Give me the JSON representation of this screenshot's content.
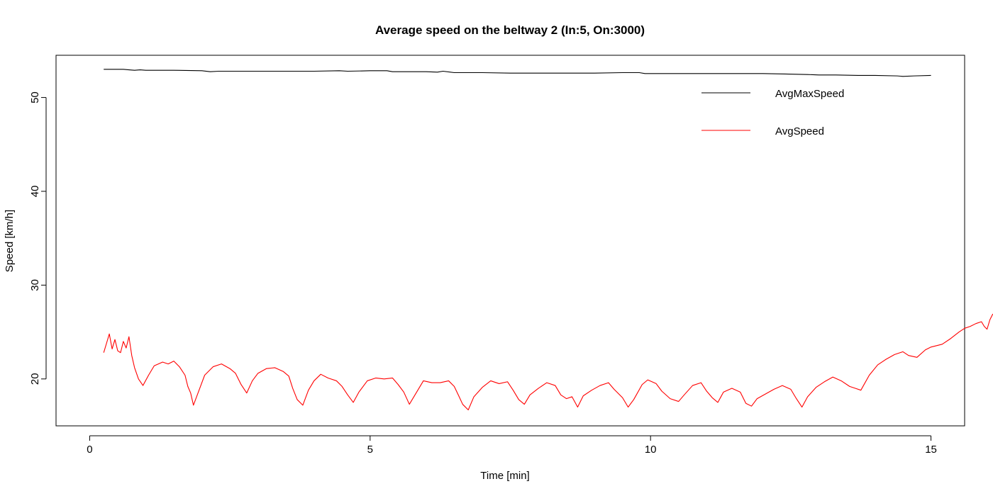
{
  "chart_data": {
    "type": "line",
    "title": "Average speed on the beltway 2 (In:5, On:3000)",
    "xlabel": "Time [min]",
    "ylabel": "Speed [km/h]",
    "xlim": [
      -0.6,
      15.6
    ],
    "ylim": [
      15.0,
      54.5
    ],
    "xticks": [
      0,
      5,
      10,
      15
    ],
    "yticks": [
      20,
      30,
      40,
      50
    ],
    "grid": false,
    "legend_position": "top-right",
    "series": [
      {
        "name": "AvgMaxSpeed",
        "color": "#000000",
        "points": [
          [
            0.25,
            53.0
          ],
          [
            0.6,
            53.0
          ],
          [
            0.7,
            52.95
          ],
          [
            0.8,
            52.9
          ],
          [
            0.9,
            52.95
          ],
          [
            1.0,
            52.9
          ],
          [
            1.5,
            52.9
          ],
          [
            2.0,
            52.85
          ],
          [
            2.15,
            52.75
          ],
          [
            2.3,
            52.8
          ],
          [
            3.0,
            52.8
          ],
          [
            4.0,
            52.8
          ],
          [
            4.45,
            52.85
          ],
          [
            4.6,
            52.8
          ],
          [
            5.0,
            52.85
          ],
          [
            5.3,
            52.85
          ],
          [
            5.4,
            52.75
          ],
          [
            6.0,
            52.75
          ],
          [
            6.2,
            52.7
          ],
          [
            6.3,
            52.8
          ],
          [
            6.5,
            52.65
          ],
          [
            7.0,
            52.65
          ],
          [
            7.5,
            52.6
          ],
          [
            8.0,
            52.6
          ],
          [
            8.5,
            52.6
          ],
          [
            9.0,
            52.6
          ],
          [
            9.5,
            52.65
          ],
          [
            9.8,
            52.65
          ],
          [
            9.9,
            52.55
          ],
          [
            10.5,
            52.55
          ],
          [
            11.0,
            52.55
          ],
          [
            11.5,
            52.55
          ],
          [
            12.0,
            52.55
          ],
          [
            12.4,
            52.5
          ],
          [
            12.8,
            52.45
          ],
          [
            13.0,
            52.4
          ],
          [
            13.3,
            52.4
          ],
          [
            13.7,
            52.35
          ],
          [
            14.0,
            52.35
          ],
          [
            14.4,
            52.3
          ],
          [
            14.5,
            52.25
          ],
          [
            14.7,
            52.3
          ],
          [
            15.0,
            52.35
          ]
        ]
      },
      {
        "name": "AvgSpeed",
        "color": "#ff0000",
        "points": [
          [
            0.25,
            22.8
          ],
          [
            0.3,
            23.8
          ],
          [
            0.35,
            24.8
          ],
          [
            0.4,
            23.2
          ],
          [
            0.45,
            24.2
          ],
          [
            0.5,
            23.0
          ],
          [
            0.55,
            22.8
          ],
          [
            0.6,
            24.0
          ],
          [
            0.65,
            23.3
          ],
          [
            0.7,
            24.5
          ],
          [
            0.75,
            22.5
          ],
          [
            0.8,
            21.2
          ],
          [
            0.87,
            20.0
          ],
          [
            0.95,
            19.3
          ],
          [
            1.05,
            20.4
          ],
          [
            1.15,
            21.4
          ],
          [
            1.3,
            21.8
          ],
          [
            1.4,
            21.6
          ],
          [
            1.5,
            21.9
          ],
          [
            1.6,
            21.3
          ],
          [
            1.7,
            20.4
          ],
          [
            1.75,
            19.2
          ],
          [
            1.8,
            18.5
          ],
          [
            1.85,
            17.2
          ],
          [
            1.95,
            18.8
          ],
          [
            2.05,
            20.4
          ],
          [
            2.2,
            21.3
          ],
          [
            2.35,
            21.6
          ],
          [
            2.5,
            21.1
          ],
          [
            2.6,
            20.6
          ],
          [
            2.7,
            19.4
          ],
          [
            2.8,
            18.5
          ],
          [
            2.9,
            19.8
          ],
          [
            3.0,
            20.6
          ],
          [
            3.15,
            21.1
          ],
          [
            3.3,
            21.2
          ],
          [
            3.45,
            20.8
          ],
          [
            3.55,
            20.3
          ],
          [
            3.62,
            19.0
          ],
          [
            3.7,
            17.8
          ],
          [
            3.8,
            17.2
          ],
          [
            3.9,
            18.8
          ],
          [
            4.0,
            19.8
          ],
          [
            4.12,
            20.5
          ],
          [
            4.25,
            20.1
          ],
          [
            4.4,
            19.8
          ],
          [
            4.5,
            19.2
          ],
          [
            4.6,
            18.3
          ],
          [
            4.7,
            17.5
          ],
          [
            4.8,
            18.6
          ],
          [
            4.95,
            19.8
          ],
          [
            5.1,
            20.1
          ],
          [
            5.25,
            20.0
          ],
          [
            5.4,
            20.1
          ],
          [
            5.5,
            19.4
          ],
          [
            5.6,
            18.6
          ],
          [
            5.7,
            17.3
          ],
          [
            5.85,
            18.8
          ],
          [
            5.95,
            19.8
          ],
          [
            6.1,
            19.6
          ],
          [
            6.25,
            19.6
          ],
          [
            6.4,
            19.8
          ],
          [
            6.5,
            19.2
          ],
          [
            6.58,
            18.2
          ],
          [
            6.65,
            17.3
          ],
          [
            6.75,
            16.7
          ],
          [
            6.85,
            18.1
          ],
          [
            7.0,
            19.1
          ],
          [
            7.15,
            19.8
          ],
          [
            7.3,
            19.5
          ],
          [
            7.45,
            19.7
          ],
          [
            7.55,
            18.8
          ],
          [
            7.65,
            17.8
          ],
          [
            7.75,
            17.3
          ],
          [
            7.85,
            18.3
          ],
          [
            8.0,
            19.0
          ],
          [
            8.15,
            19.6
          ],
          [
            8.3,
            19.3
          ],
          [
            8.4,
            18.3
          ],
          [
            8.5,
            17.9
          ],
          [
            8.6,
            18.1
          ],
          [
            8.7,
            17.0
          ],
          [
            8.8,
            18.2
          ],
          [
            8.95,
            18.8
          ],
          [
            9.1,
            19.3
          ],
          [
            9.25,
            19.6
          ],
          [
            9.35,
            18.9
          ],
          [
            9.5,
            18.0
          ],
          [
            9.6,
            17.0
          ],
          [
            9.7,
            17.8
          ],
          [
            9.85,
            19.4
          ],
          [
            9.95,
            19.9
          ],
          [
            10.1,
            19.5
          ],
          [
            10.2,
            18.7
          ],
          [
            10.35,
            17.9
          ],
          [
            10.5,
            17.6
          ],
          [
            10.6,
            18.3
          ],
          [
            10.75,
            19.3
          ],
          [
            10.9,
            19.6
          ],
          [
            11.0,
            18.7
          ],
          [
            11.1,
            18.0
          ],
          [
            11.2,
            17.5
          ],
          [
            11.3,
            18.6
          ],
          [
            11.45,
            19.0
          ],
          [
            11.6,
            18.6
          ],
          [
            11.7,
            17.4
          ],
          [
            11.8,
            17.1
          ],
          [
            11.9,
            17.9
          ],
          [
            12.05,
            18.4
          ],
          [
            12.2,
            18.9
          ],
          [
            12.35,
            19.3
          ],
          [
            12.5,
            18.9
          ],
          [
            12.6,
            17.9
          ],
          [
            12.7,
            17.0
          ],
          [
            12.8,
            18.1
          ],
          [
            12.95,
            19.1
          ],
          [
            13.1,
            19.7
          ],
          [
            13.25,
            20.2
          ],
          [
            13.4,
            19.8
          ],
          [
            13.55,
            19.2
          ],
          [
            13.65,
            19.0
          ],
          [
            13.75,
            18.8
          ],
          [
            13.9,
            20.4
          ],
          [
            14.05,
            21.5
          ],
          [
            14.2,
            22.1
          ],
          [
            14.35,
            22.6
          ],
          [
            14.5,
            22.9
          ],
          [
            14.6,
            22.5
          ],
          [
            14.75,
            22.3
          ],
          [
            14.9,
            23.1
          ],
          [
            15.0,
            23.4
          ],
          [
            15.2,
            23.7
          ],
          [
            15.35,
            24.3
          ],
          [
            15.5,
            25.0
          ],
          [
            15.6,
            25.4
          ],
          [
            15.7,
            25.6
          ],
          [
            15.8,
            25.9
          ],
          [
            15.9,
            26.1
          ],
          [
            15.95,
            25.6
          ],
          [
            16.0,
            25.3
          ],
          [
            16.05,
            26.3
          ],
          [
            16.1,
            26.9
          ],
          [
            16.2,
            26.9
          ],
          [
            16.25,
            26.8
          ],
          [
            16.3,
            27.0
          ]
        ]
      }
    ]
  }
}
